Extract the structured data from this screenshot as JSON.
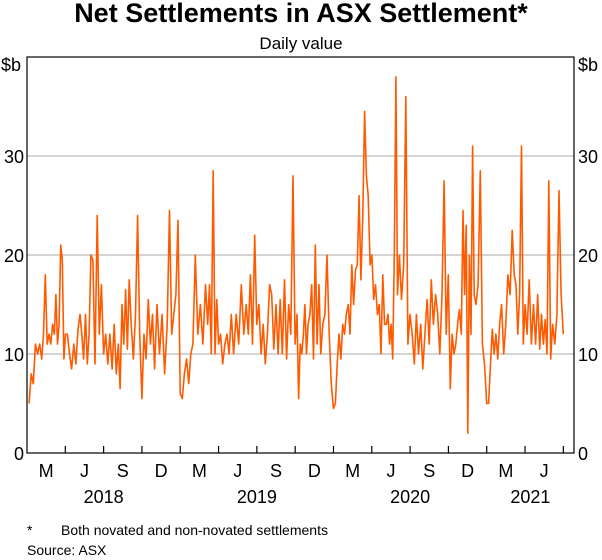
{
  "chart_data": {
    "type": "line",
    "title": "Net Settlements in ASX Settlement*",
    "subtitle": "Daily value",
    "ylabel_left": "$b",
    "ylabel_right": "$b",
    "ylim": [
      0,
      40
    ],
    "yticks": [
      0,
      10,
      20,
      30
    ],
    "grid": true,
    "x_range": [
      "2018-02",
      "2021-08"
    ],
    "x_tick_labels": [
      "M",
      "J",
      "S",
      "D",
      "M",
      "J",
      "S",
      "D",
      "M",
      "J",
      "S",
      "D",
      "M",
      "J"
    ],
    "year_labels": [
      "2018",
      "2019",
      "2020",
      "2021"
    ],
    "series": [
      {
        "name": "Net settlements",
        "color": "#ff5a00",
        "monthly": [
          {
            "month": "2018-02",
            "values": [
              5,
              8,
              7,
              11,
              10,
              11
            ]
          },
          {
            "month": "2018-03",
            "values": [
              9.5,
              12,
              18,
              11,
              12,
              11,
              13
            ]
          },
          {
            "month": "2018-04",
            "values": [
              12,
              16,
              11,
              13,
              21,
              19.5,
              9.5,
              12
            ]
          },
          {
            "month": "2018-05",
            "values": [
              12,
              10,
              8.5,
              11,
              9,
              12.5
            ]
          },
          {
            "month": "2018-06",
            "values": [
              14,
              12,
              9.5,
              14,
              9,
              12,
              20
            ]
          },
          {
            "month": "2018-07",
            "values": [
              19.5,
              9,
              24,
              12,
              17,
              10
            ]
          },
          {
            "month": "2018-08",
            "values": [
              12,
              9,
              12,
              8.5,
              13,
              8
            ]
          },
          {
            "month": "2018-09",
            "values": [
              11,
              6.5,
              15,
              11,
              16.5,
              10.5,
              17.5
            ]
          },
          {
            "month": "2018-10",
            "values": [
              13,
              9.5,
              14,
              24,
              12,
              5.5
            ]
          },
          {
            "month": "2018-11",
            "values": [
              12,
              9.5,
              15.5,
              11,
              14,
              8.5
            ]
          },
          {
            "month": "2018-12",
            "values": [
              15,
              10,
              14,
              8,
              13
            ]
          },
          {
            "month": "2019-01",
            "values": [
              24.5,
              12,
              14,
              16,
              23.5,
              6
            ]
          },
          {
            "month": "2019-02",
            "values": [
              5.5,
              8,
              9.5,
              7,
              10,
              11
            ]
          },
          {
            "month": "2019-03",
            "values": [
              20,
              12,
              15,
              11,
              17
            ]
          },
          {
            "month": "2019-04",
            "values": [
              13,
              17,
              10,
              28.5,
              10,
              15.5,
              11
            ]
          },
          {
            "month": "2019-05",
            "values": [
              12,
              9,
              11,
              12,
              10,
              14
            ]
          },
          {
            "month": "2019-06",
            "values": [
              10,
              14,
              11,
              17,
              12
            ]
          },
          {
            "month": "2019-07",
            "values": [
              15,
              12,
              18,
              11,
              22,
              13
            ]
          },
          {
            "month": "2019-08",
            "values": [
              15,
              10,
              13,
              9,
              12,
              17
            ]
          },
          {
            "month": "2019-09",
            "values": [
              16,
              10.5,
              15,
              10,
              15.5,
              10
            ]
          },
          {
            "month": "2019-10",
            "values": [
              17.5,
              9.5,
              15,
              12,
              28,
              11
            ]
          },
          {
            "month": "2019-11",
            "values": [
              14,
              5.5,
              11,
              10,
              12,
              15,
              10,
              13
            ]
          },
          {
            "month": "2019-12",
            "values": [
              14,
              17,
              9.5,
              21,
              11,
              17,
              10
            ]
          },
          {
            "month": "2020-01",
            "values": [
              13,
              14,
              20,
              12,
              7,
              4.5
            ]
          },
          {
            "month": "2020-02",
            "values": [
              5,
              9,
              12,
              9.5,
              13,
              12,
              14
            ]
          },
          {
            "month": "2020-03",
            "values": [
              15,
              12,
              19,
              15,
              18.5,
              19,
              26
            ]
          },
          {
            "month": "2020-04",
            "values": [
              17.5,
              24,
              34.5,
              28,
              26,
              19,
              20
            ]
          },
          {
            "month": "2020-05",
            "values": [
              15.5,
              17,
              14,
              15,
              10,
              18,
              13
            ]
          },
          {
            "month": "2020-06",
            "values": [
              13,
              14,
              11,
              13,
              9.5,
              20,
              38,
              16
            ]
          },
          {
            "month": "2020-07",
            "values": [
              20,
              15.5,
              19,
              36,
              11,
              14
            ]
          },
          {
            "month": "2020-08",
            "values": [
              12,
              9,
              14,
              10,
              13,
              8.5
            ]
          },
          {
            "month": "2020-09",
            "values": [
              12,
              15.5,
              11,
              17.5,
              13,
              16
            ]
          },
          {
            "month": "2020-10",
            "values": [
              14,
              10,
              16,
              27.5,
              12,
              18
            ]
          },
          {
            "month": "2020-11",
            "values": [
              6.5,
              12,
              10,
              11,
              13,
              14.5,
              12
            ]
          },
          {
            "month": "2020-12",
            "values": [
              24.5,
              16,
              23,
              2,
              20,
              12,
              31,
              16
            ]
          },
          {
            "month": "2021-01",
            "values": [
              15,
              17,
              28.5,
              11,
              9,
              5
            ]
          },
          {
            "month": "2021-02",
            "values": [
              5,
              9,
              12.5,
              10,
              12,
              9.5,
              13
            ]
          },
          {
            "month": "2021-03",
            "values": [
              15,
              10,
              13,
              18,
              16,
              22.5
            ]
          },
          {
            "month": "2021-04",
            "values": [
              18,
              17,
              12,
              16,
              31,
              11,
              15
            ]
          },
          {
            "month": "2021-05",
            "values": [
              12,
              17.5,
              11,
              15,
              11,
              16
            ]
          },
          {
            "month": "2021-06",
            "values": [
              10.5,
              14,
              11,
              13.5,
              10,
              27.5,
              9.5
            ]
          },
          {
            "month": "2021-07",
            "values": [
              13,
              11,
              14,
              26.5,
              16,
              12
            ]
          }
        ]
      }
    ],
    "footnote_marker": "*",
    "footnote": "Both novated and non-novated settlements",
    "source": "Source:  ASX"
  }
}
